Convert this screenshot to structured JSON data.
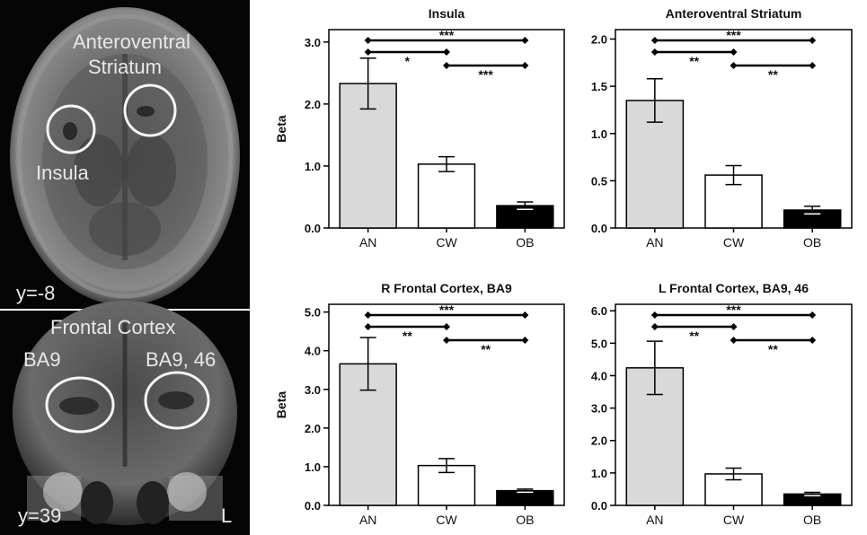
{
  "brain_images": {
    "axial": {
      "labels": [
        "Anteroventral",
        "Striatum",
        "Insula"
      ],
      "slice": "y=-8"
    },
    "coronal": {
      "title": "Frontal Cortex",
      "left_label": "BA9",
      "right_label": "BA9, 46",
      "slice": "y=39",
      "side": "L"
    }
  },
  "colors": {
    "AN": "#d9d9d9",
    "CW": "#ffffff",
    "OB": "#000000"
  },
  "chart_data": [
    {
      "type": "bar",
      "title": "Insula",
      "ylabel": "Beta",
      "categories": [
        "AN",
        "CW",
        "OB"
      ],
      "values": [
        2.33,
        1.03,
        0.36
      ],
      "errors": [
        0.41,
        0.12,
        0.06
      ],
      "ylim": [
        0,
        3.2
      ],
      "yticks": [
        "0.0",
        "1.0",
        "2.0",
        "3.0"
      ],
      "ytick_values": [
        0,
        1,
        2,
        3
      ],
      "significance": [
        {
          "from": "AN",
          "to": "OB",
          "label": "***"
        },
        {
          "from": "AN",
          "to": "CW",
          "label": "*"
        },
        {
          "from": "CW",
          "to": "OB",
          "label": "***"
        }
      ]
    },
    {
      "type": "bar",
      "title": "Anteroventral Striatum",
      "ylabel": "",
      "categories": [
        "AN",
        "CW",
        "OB"
      ],
      "values": [
        1.35,
        0.56,
        0.19
      ],
      "errors": [
        0.23,
        0.1,
        0.04
      ],
      "ylim": [
        0,
        2.1
      ],
      "yticks": [
        "0.0",
        "0.5",
        "1.0",
        "1.5",
        "2.0"
      ],
      "ytick_values": [
        0,
        0.5,
        1,
        1.5,
        2
      ],
      "significance": [
        {
          "from": "AN",
          "to": "OB",
          "label": "***"
        },
        {
          "from": "AN",
          "to": "CW",
          "label": "**"
        },
        {
          "from": "CW",
          "to": "OB",
          "label": "**"
        }
      ]
    },
    {
      "type": "bar",
      "title": "R Frontal Cortex, BA9",
      "ylabel": "Beta",
      "categories": [
        "AN",
        "CW",
        "OB"
      ],
      "values": [
        3.66,
        1.03,
        0.38
      ],
      "errors": [
        0.68,
        0.18,
        0.04
      ],
      "ylim": [
        0,
        5.2
      ],
      "yticks": [
        "0.0",
        "1.0",
        "2.0",
        "3.0",
        "4.0",
        "5.0"
      ],
      "ytick_values": [
        0,
        1,
        2,
        3,
        4,
        5
      ],
      "significance": [
        {
          "from": "AN",
          "to": "OB",
          "label": "***"
        },
        {
          "from": "AN",
          "to": "CW",
          "label": "**"
        },
        {
          "from": "CW",
          "to": "OB",
          "label": "**"
        }
      ]
    },
    {
      "type": "bar",
      "title": "L Frontal Cortex, BA9, 46",
      "ylabel": "",
      "categories": [
        "AN",
        "CW",
        "OB"
      ],
      "values": [
        4.24,
        0.97,
        0.35
      ],
      "errors": [
        0.82,
        0.18,
        0.05
      ],
      "ylim": [
        0,
        6.2
      ],
      "yticks": [
        "0.0",
        "1.0",
        "2.0",
        "3.0",
        "4.0",
        "5.0",
        "6.0"
      ],
      "ytick_values": [
        0,
        1,
        2,
        3,
        4,
        5,
        6
      ],
      "significance": [
        {
          "from": "AN",
          "to": "OB",
          "label": "***"
        },
        {
          "from": "AN",
          "to": "CW",
          "label": "**"
        },
        {
          "from": "CW",
          "to": "OB",
          "label": "**"
        }
      ]
    }
  ]
}
